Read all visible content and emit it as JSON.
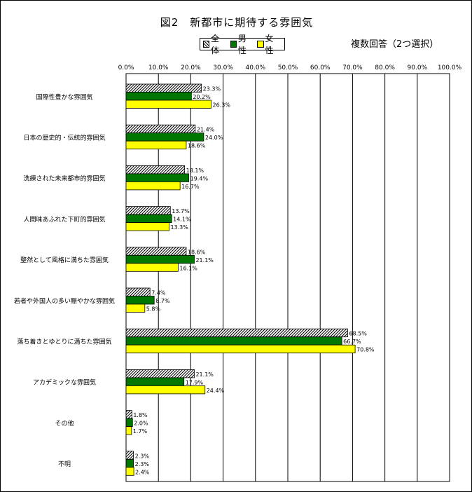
{
  "chart_data": {
    "type": "bar",
    "orientation": "horizontal",
    "title": "図2　新都市に期待する雰囲気",
    "note": "複数回答（2つ選択）",
    "categories": [
      "国際性豊かな雰囲気",
      "日本の歴史的・伝統的雰囲気",
      "洗練された未来都市的雰囲気",
      "人間味あふれた下町的雰囲気",
      "整然として風格に満ちた雰囲気",
      "若者や外国人の多い賑やかな雰囲気",
      "落ち着きとゆとりに満ちた雰囲気",
      "アカデミックな雰囲気",
      "その他",
      "不明"
    ],
    "series": [
      {
        "name": "全体",
        "values": [
          23.3,
          21.4,
          18.1,
          13.7,
          18.6,
          7.4,
          68.5,
          21.1,
          1.8,
          2.3
        ],
        "labels": [
          "23.3%",
          "21.4%",
          "18.1%",
          "13.7%",
          "18.6%",
          "7.4%",
          "68.5%",
          "21.1%",
          "1.8%",
          "2.3%"
        ],
        "color": "#ffffff",
        "pattern": "diagonal-hatch"
      },
      {
        "name": "男性",
        "values": [
          20.2,
          24.0,
          19.4,
          14.1,
          21.1,
          8.7,
          66.7,
          17.9,
          2.0,
          2.3
        ],
        "labels": [
          "20.2%",
          "24.0%",
          "19.4%",
          "14.1%",
          "21.1%",
          "8.7%",
          "66.7%",
          "17.9%",
          "2.0%",
          "2.3%"
        ],
        "color": "#007700"
      },
      {
        "name": "女性",
        "values": [
          26.3,
          18.6,
          16.7,
          13.3,
          16.1,
          5.8,
          70.8,
          24.4,
          1.7,
          2.4
        ],
        "labels": [
          "26.3%",
          "18.6%",
          "16.7%",
          "13.3%",
          "16.1%",
          "5.8%",
          "70.8%",
          "24.4%",
          "1.7%",
          "2.4%"
        ],
        "color": "#ffff00"
      }
    ],
    "xlim": [
      0,
      100
    ],
    "xticks": [
      "0.0%",
      "10.0%",
      "20.0%",
      "30.0%",
      "40.0%",
      "50.0%",
      "60.0%",
      "70.0%",
      "80.0%",
      "90.0%",
      "100.0%"
    ],
    "grid": true,
    "legend_position": "top"
  }
}
